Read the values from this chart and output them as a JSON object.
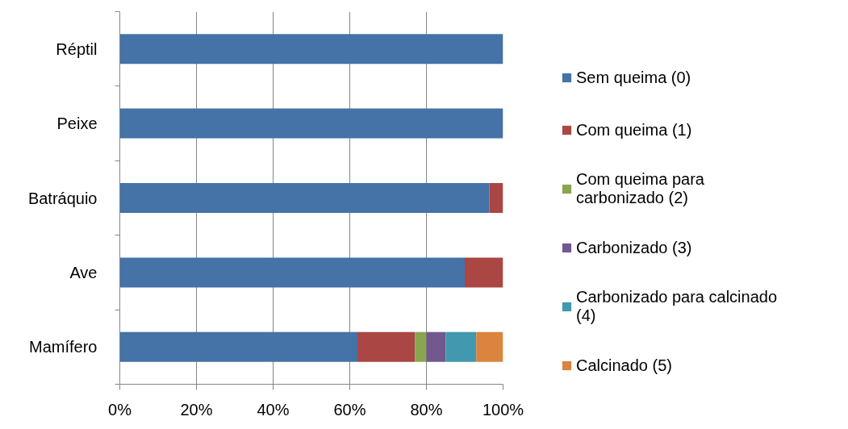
{
  "chart_data": {
    "type": "bar",
    "orientation": "horizontal",
    "stacked": true,
    "categories": [
      "Réptil",
      "Peixe",
      "Batráquio",
      "Ave",
      "Mamífero"
    ],
    "series": [
      {
        "name": "Sem queima (0)",
        "color": "#4572a7",
        "values": [
          100,
          100,
          96.4,
          90,
          62
        ]
      },
      {
        "name": "Com queima (1)",
        "color": "#aa4643",
        "values": [
          0,
          0,
          3.6,
          10,
          15
        ]
      },
      {
        "name": "Com queima para carbonizado (2)",
        "color": "#89a54e",
        "values": [
          0,
          0,
          0,
          0,
          3
        ]
      },
      {
        "name": "Carbonizado (3)",
        "color": "#71588f",
        "values": [
          0,
          0,
          0,
          0,
          5
        ]
      },
      {
        "name": "Carbonizado para calcinado (4)",
        "color": "#4198af",
        "values": [
          0,
          0,
          0,
          0,
          8
        ]
      },
      {
        "name": "Calcinado (5)",
        "color": "#db843d",
        "values": [
          0,
          0,
          0,
          0,
          7
        ]
      }
    ],
    "xlim": [
      0,
      100
    ],
    "xticks": [
      {
        "value": 0,
        "label": "0%"
      },
      {
        "value": 20,
        "label": "20%"
      },
      {
        "value": 40,
        "label": "40%"
      },
      {
        "value": 60,
        "label": "60%"
      },
      {
        "value": 80,
        "label": "80%"
      },
      {
        "value": 100,
        "label": "100%"
      }
    ],
    "grid": "x",
    "legend": "right"
  }
}
